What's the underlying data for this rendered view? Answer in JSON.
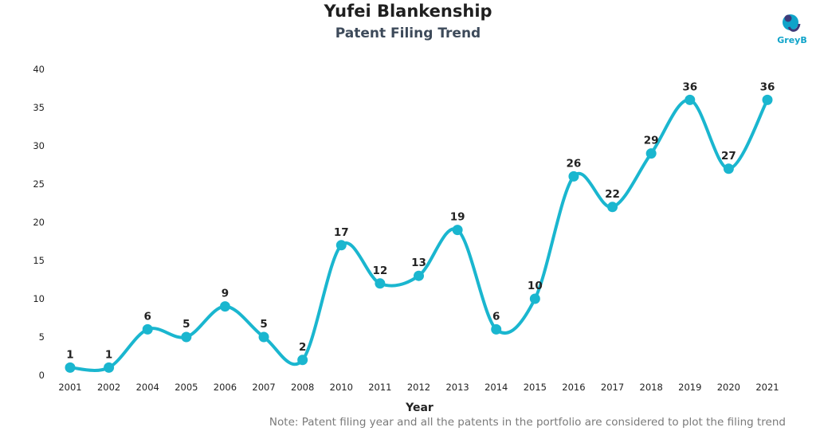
{
  "title": "Yufei Blankenship",
  "subtitle": "Patent Filing Trend",
  "logo_text": "GreyB",
  "note": "Note: Patent filing year and all the patents in the portfolio are considered to plot the filing trend",
  "colors": {
    "line": "#1ab6cf",
    "logo": "#0fa3c9"
  },
  "chart_data": {
    "type": "line",
    "title": "Yufei Blankenship",
    "subtitle": "Patent Filing Trend",
    "xlabel": "Year",
    "ylabel": "",
    "categories": [
      "2001",
      "2002",
      "2004",
      "2005",
      "2006",
      "2007",
      "2008",
      "2010",
      "2011",
      "2012",
      "2013",
      "2014",
      "2015",
      "2016",
      "2017",
      "2018",
      "2019",
      "2020",
      "2021"
    ],
    "values": [
      1,
      1,
      6,
      5,
      9,
      5,
      2,
      17,
      12,
      13,
      19,
      6,
      10,
      26,
      22,
      29,
      36,
      27,
      36
    ],
    "ylim": [
      0,
      40
    ],
    "yticks": [
      0,
      5,
      10,
      15,
      20,
      25,
      30,
      35,
      40
    ],
    "grid": false,
    "smooth": true,
    "data_labels": true
  }
}
